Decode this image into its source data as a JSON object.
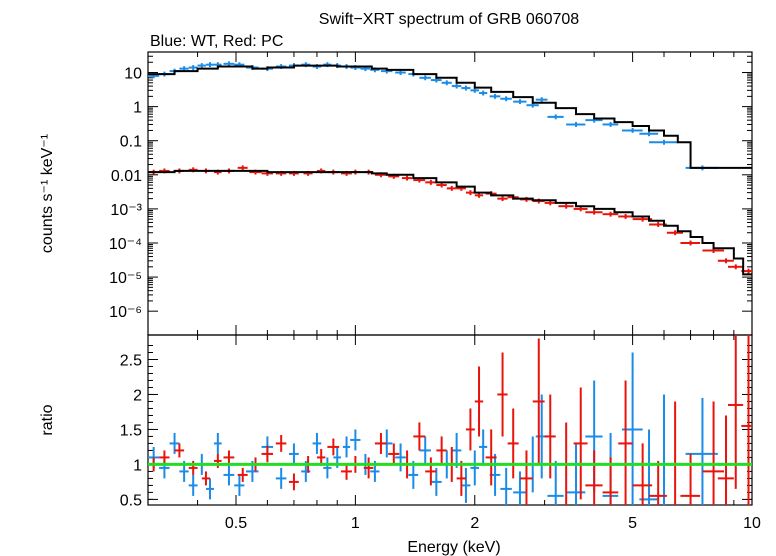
{
  "chart_data": [
    {
      "type": "scatter",
      "panel": "spectrum",
      "title": "Swift−XRT spectrum of GRB 060708",
      "subtitle": "Blue: WT, Red: PC",
      "ylabel": "counts s⁻¹ keV⁻¹",
      "xscale": "log",
      "yscale": "log",
      "xlim": [
        0.3,
        10
      ],
      "ylim": [
        2e-07,
        40
      ],
      "x_ticks": [
        0.5,
        1,
        2,
        5,
        10
      ],
      "y_ticks": [
        {
          "v": 10,
          "t": "10"
        },
        {
          "v": 1,
          "t": "1"
        },
        {
          "v": 0.1,
          "t": "0.1"
        },
        {
          "v": 0.01,
          "t": "0.01"
        },
        {
          "v": 0.001,
          "t": "10⁻³"
        },
        {
          "v": 0.0001,
          "t": "10⁻⁴"
        },
        {
          "v": 1e-05,
          "t": "10⁻⁵"
        },
        {
          "v": 1e-06,
          "t": "10⁻⁶"
        }
      ],
      "series": [
        {
          "label": "WT",
          "color": "#1a8ce8",
          "kind": "points",
          "x": [
            0.31,
            0.33,
            0.35,
            0.37,
            0.39,
            0.41,
            0.43,
            0.45,
            0.48,
            0.51,
            0.55,
            0.6,
            0.65,
            0.7,
            0.75,
            0.8,
            0.85,
            0.9,
            0.95,
            1.0,
            1.06,
            1.12,
            1.2,
            1.3,
            1.4,
            1.5,
            1.6,
            1.7,
            1.8,
            1.9,
            2.0,
            2.1,
            2.25,
            2.4,
            2.6,
            2.8,
            2.95,
            3.2,
            3.6,
            4.0,
            4.4,
            5.0,
            5.5,
            6.0,
            7.5
          ],
          "y": [
            8,
            9,
            11,
            13,
            14,
            16,
            17,
            17,
            18,
            17,
            14,
            13,
            15,
            16,
            17,
            15,
            17,
            16,
            15,
            14,
            13,
            12,
            11,
            10,
            9,
            7,
            6,
            5,
            4,
            3.5,
            3.0,
            2.5,
            2.0,
            1.7,
            1.4,
            1.1,
            1.6,
            0.5,
            0.3,
            0.4,
            0.3,
            0.2,
            0.16,
            0.09,
            0.016
          ],
          "xerr": [
            0.01,
            0.01,
            0.01,
            0.01,
            0.01,
            0.01,
            0.01,
            0.01,
            0.015,
            0.015,
            0.02,
            0.02,
            0.02,
            0.02,
            0.02,
            0.02,
            0.02,
            0.02,
            0.02,
            0.03,
            0.03,
            0.03,
            0.04,
            0.04,
            0.04,
            0.05,
            0.05,
            0.05,
            0.05,
            0.05,
            0.05,
            0.05,
            0.07,
            0.08,
            0.1,
            0.1,
            0.1,
            0.15,
            0.2,
            0.2,
            0.2,
            0.3,
            0.3,
            0.5,
            0.7
          ]
        },
        {
          "label": "PC",
          "color": "#e8140c",
          "kind": "points",
          "x": [
            0.31,
            0.33,
            0.36,
            0.39,
            0.42,
            0.45,
            0.48,
            0.52,
            0.56,
            0.6,
            0.65,
            0.7,
            0.76,
            0.82,
            0.88,
            0.95,
            1.0,
            1.08,
            1.16,
            1.25,
            1.35,
            1.45,
            1.55,
            1.65,
            1.75,
            1.85,
            1.95,
            2.05,
            2.2,
            2.35,
            2.5,
            2.7,
            2.9,
            3.1,
            3.4,
            3.7,
            4.0,
            4.4,
            4.8,
            5.3,
            5.8,
            6.4,
            7.0,
            8.0,
            8.6,
            9.1,
            9.8
          ],
          "y": [
            0.012,
            0.013,
            0.013,
            0.014,
            0.013,
            0.012,
            0.013,
            0.016,
            0.012,
            0.011,
            0.011,
            0.011,
            0.011,
            0.013,
            0.012,
            0.011,
            0.012,
            0.012,
            0.01,
            0.009,
            0.008,
            0.007,
            0.006,
            0.005,
            0.004,
            0.004,
            0.003,
            0.0025,
            0.0028,
            0.002,
            0.0022,
            0.0019,
            0.0017,
            0.0015,
            0.0012,
            0.001,
            0.0008,
            0.0007,
            0.0006,
            0.0005,
            0.00035,
            0.0002,
            0.0001,
            6e-05,
            3e-05,
            2e-05,
            1.5e-05
          ],
          "xerr": [
            0.01,
            0.01,
            0.01,
            0.01,
            0.01,
            0.01,
            0.015,
            0.015,
            0.02,
            0.02,
            0.02,
            0.02,
            0.02,
            0.02,
            0.03,
            0.03,
            0.03,
            0.03,
            0.04,
            0.04,
            0.04,
            0.05,
            0.05,
            0.05,
            0.05,
            0.05,
            0.05,
            0.05,
            0.07,
            0.07,
            0.08,
            0.1,
            0.1,
            0.1,
            0.15,
            0.15,
            0.2,
            0.2,
            0.2,
            0.3,
            0.3,
            0.3,
            0.4,
            0.5,
            0.4,
            0.4,
            0.4
          ]
        },
        {
          "label": "WT model",
          "color": "#000000",
          "kind": "step",
          "x": [
            0.3,
            0.35,
            0.4,
            0.45,
            0.5,
            0.55,
            0.6,
            0.7,
            0.8,
            0.9,
            1.0,
            1.1,
            1.2,
            1.4,
            1.6,
            1.8,
            2.0,
            2.2,
            2.5,
            2.8,
            3.2,
            3.6,
            4.0,
            4.5,
            5.0,
            5.5,
            6.0,
            6.5,
            7.0,
            8.0
          ],
          "y": [
            9,
            11,
            13,
            15,
            15,
            13,
            14,
            16,
            16,
            15,
            15,
            13,
            12,
            9,
            7,
            5,
            3.6,
            2.7,
            1.9,
            1.3,
            0.9,
            0.6,
            0.45,
            0.35,
            0.27,
            0.2,
            0.14,
            0.09,
            0.016,
            0.016
          ]
        },
        {
          "label": "PC model",
          "color": "#000000",
          "kind": "step",
          "x": [
            0.3,
            0.35,
            0.4,
            0.45,
            0.5,
            0.6,
            0.7,
            0.8,
            0.9,
            1.0,
            1.1,
            1.2,
            1.4,
            1.6,
            1.8,
            2.0,
            2.2,
            2.5,
            2.8,
            3.2,
            3.6,
            4.0,
            4.5,
            5.0,
            5.5,
            6.0,
            6.5,
            7.0,
            7.5,
            8.0,
            9.0,
            9.5,
            10
          ],
          "y": [
            0.012,
            0.013,
            0.013,
            0.013,
            0.013,
            0.012,
            0.012,
            0.012,
            0.012,
            0.012,
            0.011,
            0.01,
            0.008,
            0.006,
            0.0045,
            0.003,
            0.0025,
            0.002,
            0.0018,
            0.0015,
            0.0012,
            0.001,
            0.0008,
            0.0006,
            0.00045,
            0.00032,
            0.00022,
            0.00015,
            0.0001,
            7e-05,
            3.5e-05,
            1.2e-05,
            1.2e-05
          ]
        }
      ]
    },
    {
      "type": "scatter",
      "panel": "ratio",
      "xlabel": "Energy (keV)",
      "ylabel": "ratio",
      "xscale": "log",
      "yscale": "linear",
      "xlim": [
        0.3,
        10
      ],
      "ylim": [
        0.42,
        2.85
      ],
      "x_ticks": [
        0.5,
        1,
        2,
        5,
        10
      ],
      "y_ticks": [
        0.5,
        1,
        1.5,
        2,
        2.5
      ],
      "reference_line": {
        "y": 1,
        "color": "#22dd22"
      },
      "series": [
        {
          "label": "WT",
          "color": "#1a8ce8",
          "x": [
            0.31,
            0.33,
            0.35,
            0.37,
            0.39,
            0.41,
            0.43,
            0.45,
            0.48,
            0.51,
            0.55,
            0.6,
            0.65,
            0.7,
            0.75,
            0.8,
            0.85,
            0.9,
            0.95,
            1.0,
            1.06,
            1.12,
            1.2,
            1.3,
            1.4,
            1.5,
            1.6,
            1.7,
            1.8,
            1.9,
            2.0,
            2.1,
            2.25,
            2.4,
            2.6,
            2.8,
            2.95,
            3.2,
            3.6,
            4.0,
            4.4,
            5.0,
            5.5,
            6.0,
            7.5
          ],
          "y": [
            1.1,
            0.95,
            1.3,
            0.9,
            0.7,
            1.0,
            0.65,
            1.3,
            0.85,
            0.7,
            0.9,
            1.25,
            0.8,
            1.15,
            0.9,
            1.3,
            0.95,
            1.1,
            1.25,
            1.35,
            1.0,
            0.9,
            1.3,
            1.1,
            0.85,
            1.2,
            0.75,
            1.0,
            1.2,
            0.7,
            0.95,
            1.25,
            0.85,
            0.65,
            0.6,
            1.0,
            1.4,
            0.55,
            0.6,
            1.4,
            0.55,
            1.5,
            0.5,
            1.0,
            1.15
          ],
          "xerr": [
            0.01,
            0.01,
            0.01,
            0.01,
            0.01,
            0.01,
            0.01,
            0.01,
            0.015,
            0.015,
            0.02,
            0.02,
            0.02,
            0.02,
            0.02,
            0.02,
            0.02,
            0.02,
            0.02,
            0.03,
            0.03,
            0.03,
            0.04,
            0.04,
            0.04,
            0.05,
            0.05,
            0.05,
            0.05,
            0.05,
            0.05,
            0.05,
            0.07,
            0.08,
            0.1,
            0.1,
            0.1,
            0.15,
            0.2,
            0.2,
            0.2,
            0.3,
            0.3,
            0.5,
            0.7
          ],
          "yerr": [
            0.15,
            0.15,
            0.15,
            0.15,
            0.15,
            0.15,
            0.15,
            0.15,
            0.15,
            0.15,
            0.15,
            0.15,
            0.15,
            0.15,
            0.15,
            0.15,
            0.15,
            0.15,
            0.15,
            0.15,
            0.15,
            0.15,
            0.2,
            0.2,
            0.2,
            0.2,
            0.2,
            0.2,
            0.25,
            0.25,
            0.25,
            0.25,
            0.3,
            0.3,
            0.3,
            0.4,
            0.6,
            0.5,
            0.7,
            0.8,
            0.9,
            1.1,
            1.0,
            1.0,
            0.8
          ]
        },
        {
          "label": "PC",
          "color": "#e8140c",
          "x": [
            0.31,
            0.33,
            0.36,
            0.39,
            0.42,
            0.45,
            0.48,
            0.52,
            0.56,
            0.6,
            0.65,
            0.7,
            0.76,
            0.82,
            0.88,
            0.95,
            1.0,
            1.08,
            1.16,
            1.25,
            1.35,
            1.45,
            1.55,
            1.65,
            1.75,
            1.85,
            1.95,
            2.05,
            2.2,
            2.35,
            2.5,
            2.7,
            2.9,
            3.1,
            3.4,
            3.7,
            4.0,
            4.4,
            4.8,
            5.3,
            5.8,
            6.4,
            7.0,
            8.0,
            8.6,
            9.1,
            9.8
          ],
          "y": [
            1.0,
            1.1,
            1.2,
            0.95,
            0.8,
            1.05,
            1.1,
            0.85,
            1.0,
            1.15,
            1.3,
            0.75,
            1.0,
            1.1,
            1.25,
            0.9,
            1.0,
            0.95,
            1.3,
            1.15,
            1.0,
            1.4,
            0.9,
            1.2,
            1.0,
            0.8,
            1.5,
            1.9,
            1.1,
            2.0,
            1.3,
            0.8,
            1.9,
            1.4,
            1.0,
            1.3,
            0.7,
            0.6,
            1.3,
            0.7,
            0.55,
            1.0,
            0.55,
            0.9,
            0.8,
            1.85,
            1.55
          ],
          "xerr": [
            0.01,
            0.01,
            0.01,
            0.01,
            0.01,
            0.01,
            0.015,
            0.015,
            0.02,
            0.02,
            0.02,
            0.02,
            0.02,
            0.02,
            0.03,
            0.03,
            0.03,
            0.03,
            0.04,
            0.04,
            0.04,
            0.05,
            0.05,
            0.05,
            0.05,
            0.05,
            0.05,
            0.05,
            0.07,
            0.07,
            0.08,
            0.1,
            0.1,
            0.1,
            0.15,
            0.15,
            0.2,
            0.2,
            0.2,
            0.3,
            0.3,
            0.3,
            0.4,
            0.5,
            0.4,
            0.4,
            0.4
          ],
          "yerr": [
            0.1,
            0.1,
            0.1,
            0.1,
            0.1,
            0.1,
            0.1,
            0.1,
            0.1,
            0.12,
            0.12,
            0.12,
            0.12,
            0.12,
            0.12,
            0.12,
            0.12,
            0.15,
            0.15,
            0.15,
            0.2,
            0.2,
            0.2,
            0.2,
            0.25,
            0.25,
            0.3,
            0.5,
            0.4,
            0.6,
            0.5,
            0.4,
            0.9,
            0.6,
            0.6,
            0.8,
            0.5,
            0.5,
            0.9,
            0.6,
            0.5,
            0.9,
            0.6,
            1.0,
            0.9,
            1.2,
            1.3
          ]
        }
      ]
    }
  ]
}
